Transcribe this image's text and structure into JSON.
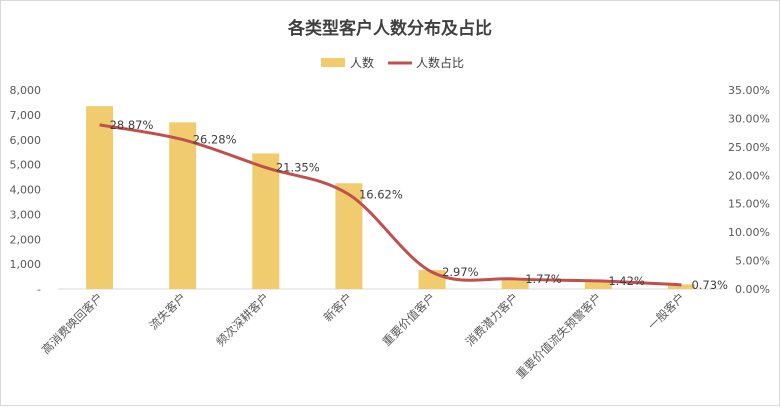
{
  "chart_data": {
    "type": "bar",
    "title": "各类型客户人数分布及占比",
    "legend": {
      "position": "top",
      "bar_label": "人数",
      "line_label": "人数占比"
    },
    "categories": [
      "高消费唤回客户",
      "流失客户",
      "频次深耕客户",
      "新客户",
      "重要价值客户",
      "消费潜力客户",
      "重要价值流失预警客户",
      "一般客户"
    ],
    "series": [
      {
        "name": "人数",
        "type": "bar",
        "axis": "left",
        "color": "#F0CC6E",
        "values": [
          7350,
          6700,
          5450,
          4250,
          760,
          450,
          360,
          185
        ]
      },
      {
        "name": "人数占比",
        "type": "line",
        "axis": "right",
        "color": "#C0504D",
        "values": [
          28.87,
          26.28,
          21.35,
          16.62,
          2.97,
          1.77,
          1.42,
          0.73
        ],
        "labels": [
          "28.87%",
          "26.28%",
          "21.35%",
          "16.62%",
          "2.97%",
          "1.77%",
          "1.42%",
          "0.73%"
        ]
      }
    ],
    "ylim": [
      0,
      8000
    ],
    "y_ticks": [
      "-",
      "1,000",
      "2,000",
      "3,000",
      "4,000",
      "5,000",
      "6,000",
      "7,000",
      "8,000"
    ],
    "y2lim": [
      0,
      35
    ],
    "y2_ticks": [
      "0.00%",
      "5.00%",
      "10.00%",
      "15.00%",
      "20.00%",
      "25.00%",
      "30.00%",
      "35.00%"
    ],
    "grid": false
  }
}
